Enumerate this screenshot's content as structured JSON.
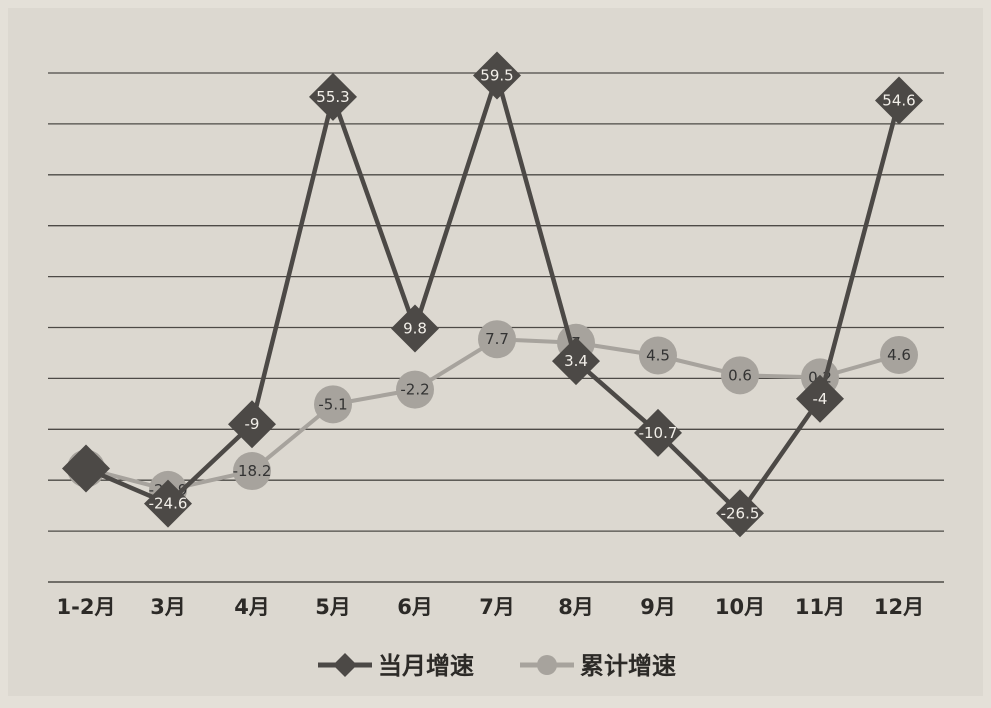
{
  "colors": {
    "background": "#e4e0d8",
    "plot_background": "#dcd8d0",
    "gridline": "#4d4a46",
    "series_monthly": "#4c4946",
    "series_cumulative": "#a7a39d"
  },
  "chart_data": {
    "type": "line",
    "title": "",
    "xlabel": "",
    "ylabel": "",
    "categories": [
      "1-2月",
      "3月",
      "4月",
      "5月",
      "6月",
      "7月",
      "8月",
      "9月",
      "10月",
      "11月",
      "12月"
    ],
    "ylim": [
      -40,
      60
    ],
    "grid": true,
    "legend_position": "bottom",
    "series": [
      {
        "name": "当月增速",
        "marker": "diamond",
        "color": "#4c4946",
        "values": [
          -17.7,
          -24.6,
          -9,
          55.3,
          9.8,
          59.5,
          3.4,
          -10.7,
          -26.5,
          -4,
          54.6
        ],
        "labels": [
          "",
          "-24.6",
          "-9",
          "55.3",
          "9.8",
          "59.5",
          "3.4",
          "-10.7",
          "-26.5",
          "-4",
          "54.6"
        ]
      },
      {
        "name": "累计增速",
        "marker": "circle",
        "color": "#a7a39d",
        "values": [
          -17.7,
          -21.9,
          -18.2,
          -5.1,
          -2.2,
          7.7,
          7,
          4.5,
          0.6,
          0.2,
          4.6
        ],
        "labels": [
          "-17.7",
          "-21.9",
          "-18.2",
          "-5.1",
          "-2.2",
          "7.7",
          "7",
          "4.5",
          "0.6",
          "0.2",
          "4.6"
        ]
      }
    ]
  }
}
